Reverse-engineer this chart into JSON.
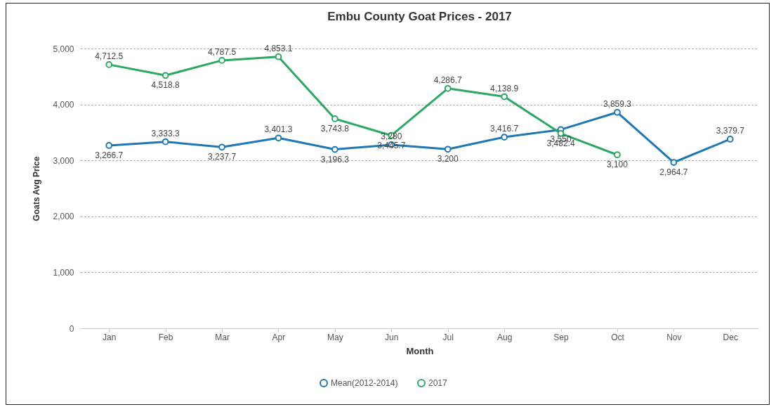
{
  "chart_data": {
    "type": "line",
    "title": "Embu County Goat Prices - 2017",
    "xlabel": "Month",
    "ylabel": "Goats Avg Price",
    "categories": [
      "Jan",
      "Feb",
      "Mar",
      "Apr",
      "May",
      "Jun",
      "Jul",
      "Aug",
      "Sep",
      "Oct",
      "Nov",
      "Dec"
    ],
    "series": [
      {
        "name": "Mean(2012-2014)",
        "color": "#1f77b4",
        "values": [
          3266.7,
          3333.3,
          3237.7,
          3401.3,
          3196.3,
          3280,
          3200,
          3416.7,
          3550,
          3859.3,
          2964.7,
          3379.7
        ],
        "value_labels": [
          "3,266.7",
          "3,333.3",
          "3,237.7",
          "3,401.3",
          "3,196.3",
          "3,280",
          "3,200",
          "3,416.7",
          "3,550",
          "3,859.3",
          "2,964.7",
          "3,379.7"
        ]
      },
      {
        "name": "2017",
        "color": "#2ca864",
        "values": [
          4712.5,
          4518.8,
          4787.5,
          4853.1,
          3743.8,
          3445.7,
          4286.7,
          4138.9,
          3482.4,
          3100,
          null,
          null
        ],
        "value_labels": [
          "4,712.5",
          "4,518.8",
          "4,787.5",
          "4,853.1",
          "3,743.8",
          "3,445.7",
          "4,286.7",
          "4,138.9",
          "3,482.4",
          "3,100",
          null,
          null
        ]
      }
    ],
    "ylim": [
      0,
      5000
    ],
    "yticks": [
      0,
      {
        "value": 1000,
        "label": "1,000"
      },
      {
        "value": 2000,
        "label": "2,000"
      },
      {
        "value": 3000,
        "label": "3,000"
      },
      {
        "value": 4000,
        "label": "4,000"
      },
      {
        "value": 5000,
        "label": "5,000"
      }
    ],
    "grid": "y",
    "legend": "bottom",
    "marker": "circle"
  }
}
